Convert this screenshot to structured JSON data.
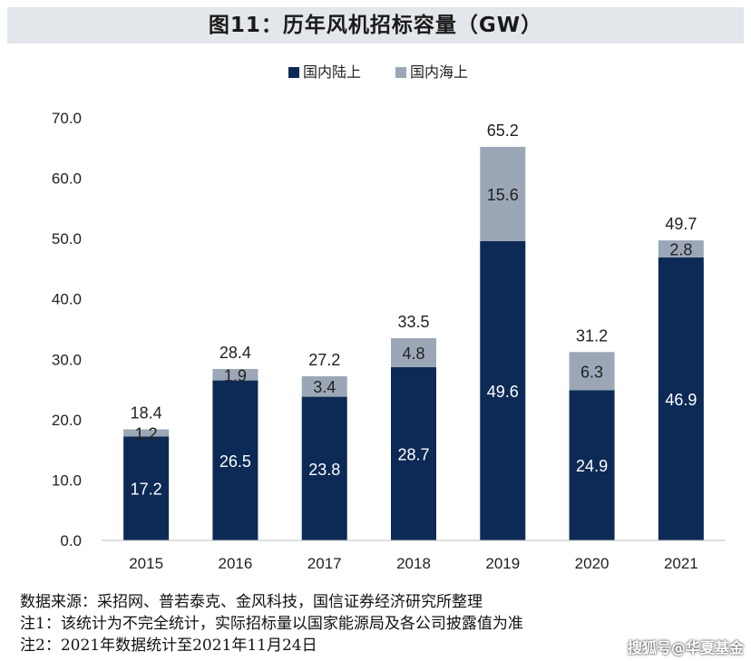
{
  "title": "图11：历年风机招标容量（GW）",
  "chart_data": {
    "type": "bar",
    "stacked": true,
    "categories": [
      "2015",
      "2016",
      "2017",
      "2018",
      "2019",
      "2020",
      "2021"
    ],
    "series": [
      {
        "name": "国内陆上",
        "color": "#0c2a55",
        "values": [
          17.2,
          26.5,
          23.8,
          28.7,
          49.6,
          24.9,
          46.9
        ]
      },
      {
        "name": "国内海上",
        "color": "#9ba7b6",
        "values": [
          1.2,
          1.9,
          3.4,
          4.8,
          15.6,
          6.3,
          2.8
        ]
      }
    ],
    "totals": [
      18.4,
      28.4,
      27.2,
      33.5,
      65.2,
      31.2,
      49.7
    ],
    "ylim": [
      0,
      70
    ],
    "yticks": [
      "0.0",
      "10.0",
      "20.0",
      "30.0",
      "40.0",
      "50.0",
      "60.0",
      "70.0"
    ],
    "grid": false,
    "legend_position": "top-center",
    "xlabel": "",
    "ylabel": ""
  },
  "notes": {
    "source": "数据来源：采招网、普若泰克、金风科技，国信证券经济研究所整理",
    "note1": "注1：该统计为不完全统计，实际招标量以国家能源局及各公司披露值为准",
    "note2": "注2：2021年数据统计至2021年11月24日"
  },
  "watermark": "搜狐号@华夏基金"
}
